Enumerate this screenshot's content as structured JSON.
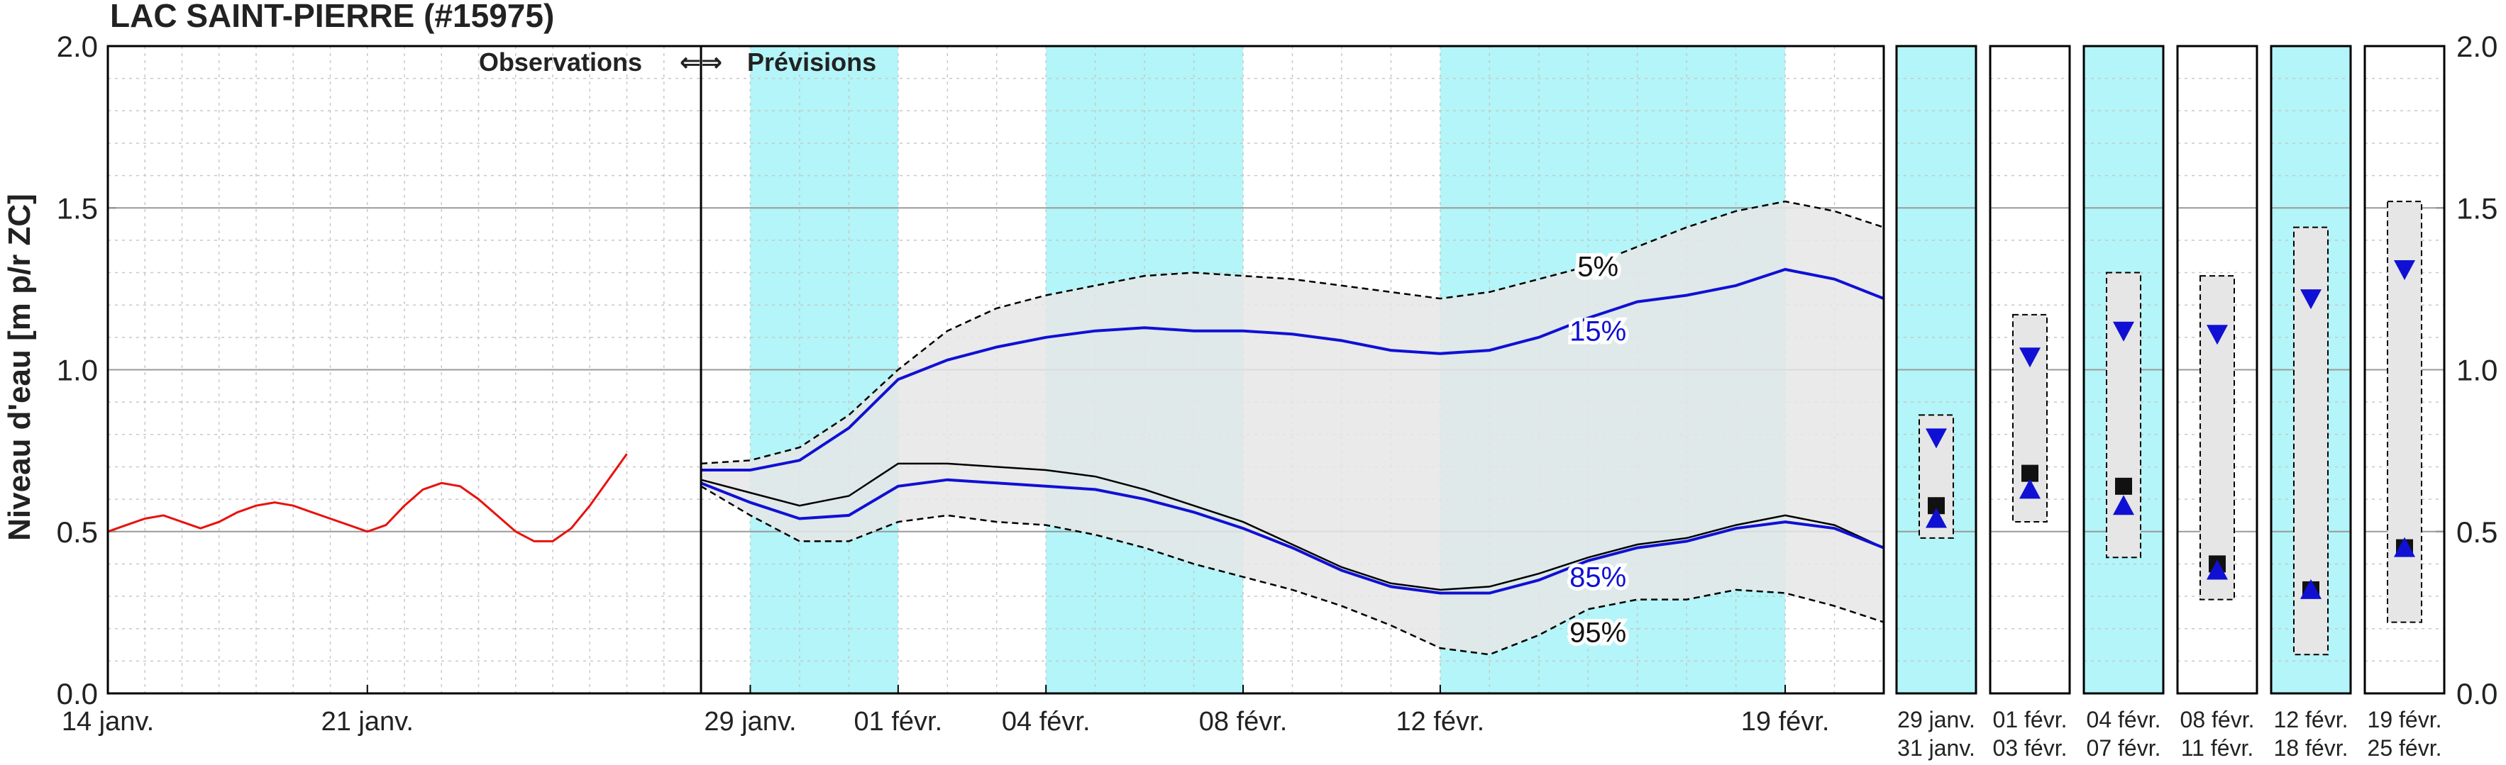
{
  "chart_data": {
    "type": "line",
    "title": "LAC SAINT-PIERRE (#15975)",
    "ylabel": "Niveau d'eau [m p/r ZC]",
    "ylim": [
      0,
      2
    ],
    "yticks": [
      "0.0",
      "0.5",
      "1.0",
      "1.5",
      "2.0"
    ],
    "grid": true,
    "colors": {
      "observation": "#e8120c",
      "median": "#000000",
      "pct15_85": "#1010d4",
      "band": "#e6e6e6",
      "weekend": "#b3f5f8",
      "marker_black": "#111111",
      "marker_blue": "#1010d4"
    },
    "section_labels": {
      "observations": "Observations",
      "arrows": "⇐⇒",
      "forecasts": "Prévisions"
    },
    "obs_panel": {
      "x_range": [
        0,
        16
      ],
      "x_ticks": [
        {
          "x": 0,
          "label": "14 janv."
        },
        {
          "x": 7,
          "label": "21 janv."
        }
      ],
      "observed": {
        "name": "Observations",
        "x": [
          0,
          0.5,
          1,
          1.5,
          2,
          2.5,
          3,
          3.5,
          4,
          4.5,
          5,
          5.5,
          6,
          6.5,
          7,
          7.5,
          8,
          8.5,
          9,
          9.5,
          10,
          10.5,
          11,
          11.5,
          12,
          12.5,
          13,
          13.5,
          14
        ],
        "y": [
          0.5,
          0.52,
          0.54,
          0.55,
          0.53,
          0.51,
          0.53,
          0.56,
          0.58,
          0.59,
          0.58,
          0.56,
          0.54,
          0.52,
          0.5,
          0.52,
          0.58,
          0.63,
          0.65,
          0.64,
          0.6,
          0.55,
          0.5,
          0.47,
          0.47,
          0.51,
          0.58,
          0.66,
          0.74
        ]
      }
    },
    "forecast_panel": {
      "x_range": [
        28,
        52
      ],
      "weekend_bands": [
        [
          29,
          32
        ],
        [
          35,
          39
        ],
        [
          43,
          50
        ]
      ],
      "x_ticks": [
        {
          "x": 29,
          "label": "29 janv."
        },
        {
          "x": 32,
          "label": "01 févr."
        },
        {
          "x": 35,
          "label": "04 févr."
        },
        {
          "x": 39,
          "label": "08 févr."
        },
        {
          "x": 43,
          "label": "12 févr."
        },
        {
          "x": 50,
          "label": "19 févr."
        }
      ],
      "x": [
        28,
        29,
        30,
        31,
        32,
        33,
        34,
        35,
        36,
        37,
        38,
        39,
        40,
        41,
        42,
        43,
        44,
        45,
        46,
        47,
        48,
        49,
        50,
        51,
        52
      ],
      "series": [
        {
          "name": "5%",
          "key": "p5",
          "values": [
            0.71,
            0.72,
            0.76,
            0.86,
            1.0,
            1.12,
            1.19,
            1.23,
            1.26,
            1.29,
            1.3,
            1.29,
            1.28,
            1.26,
            1.24,
            1.22,
            1.24,
            1.28,
            1.32,
            1.38,
            1.44,
            1.49,
            1.52,
            1.49,
            1.44
          ]
        },
        {
          "name": "15%",
          "key": "p15",
          "values": [
            0.69,
            0.69,
            0.72,
            0.82,
            0.97,
            1.03,
            1.07,
            1.1,
            1.12,
            1.13,
            1.12,
            1.12,
            1.11,
            1.09,
            1.06,
            1.05,
            1.06,
            1.1,
            1.16,
            1.21,
            1.23,
            1.26,
            1.31,
            1.28,
            1.22
          ]
        },
        {
          "name": "50%",
          "key": "p50",
          "values": [
            0.66,
            0.62,
            0.58,
            0.61,
            0.71,
            0.71,
            0.7,
            0.69,
            0.67,
            0.63,
            0.58,
            0.53,
            0.46,
            0.39,
            0.34,
            0.32,
            0.33,
            0.37,
            0.42,
            0.46,
            0.48,
            0.52,
            0.55,
            0.52,
            0.45
          ]
        },
        {
          "name": "85%",
          "key": "p85",
          "values": [
            0.65,
            0.59,
            0.54,
            0.55,
            0.64,
            0.66,
            0.65,
            0.64,
            0.63,
            0.6,
            0.56,
            0.51,
            0.45,
            0.38,
            0.33,
            0.31,
            0.31,
            0.35,
            0.41,
            0.45,
            0.47,
            0.51,
            0.53,
            0.51,
            0.45
          ]
        },
        {
          "name": "95%",
          "key": "p95",
          "values": [
            0.64,
            0.55,
            0.47,
            0.47,
            0.53,
            0.55,
            0.53,
            0.52,
            0.49,
            0.45,
            0.4,
            0.36,
            0.32,
            0.27,
            0.21,
            0.14,
            0.12,
            0.18,
            0.26,
            0.29,
            0.29,
            0.32,
            0.31,
            0.27,
            0.22
          ]
        }
      ],
      "line_labels": [
        {
          "series": "p5",
          "text": "5%",
          "x": 46.2,
          "y": 1.32
        },
        {
          "series": "p15",
          "text": "15%",
          "x": 46.2,
          "y": 1.12
        },
        {
          "series": "p85",
          "text": "85%",
          "x": 46.2,
          "y": 0.36
        },
        {
          "series": "p95",
          "text": "95%",
          "x": 46.2,
          "y": 0.19
        }
      ]
    },
    "period_panels": [
      {
        "line1": "29  janv.",
        "line2": "31  janv.",
        "weekend": true,
        "band": [
          0.48,
          0.86
        ],
        "square": 0.58,
        "up": 0.54,
        "down": 0.79
      },
      {
        "line1": "01  févr.",
        "line2": "03  févr.",
        "weekend": false,
        "band": [
          0.53,
          1.17
        ],
        "square": 0.68,
        "up": 0.63,
        "down": 1.04
      },
      {
        "line1": "04  févr.",
        "line2": "07  févr.",
        "weekend": true,
        "band": [
          0.42,
          1.3
        ],
        "square": 0.64,
        "up": 0.58,
        "down": 1.12
      },
      {
        "line1": "08  févr.",
        "line2": "11  févr.",
        "weekend": false,
        "band": [
          0.29,
          1.29
        ],
        "square": 0.4,
        "up": 0.38,
        "down": 1.11
      },
      {
        "line1": "12  févr.",
        "line2": "18  févr.",
        "weekend": true,
        "band": [
          0.12,
          1.44
        ],
        "square": 0.32,
        "up": 0.32,
        "down": 1.22
      },
      {
        "line1": "19  févr.",
        "line2": "25  févr.",
        "weekend": false,
        "band": [
          0.22,
          1.52
        ],
        "square": 0.45,
        "up": 0.45,
        "down": 1.31
      }
    ]
  }
}
